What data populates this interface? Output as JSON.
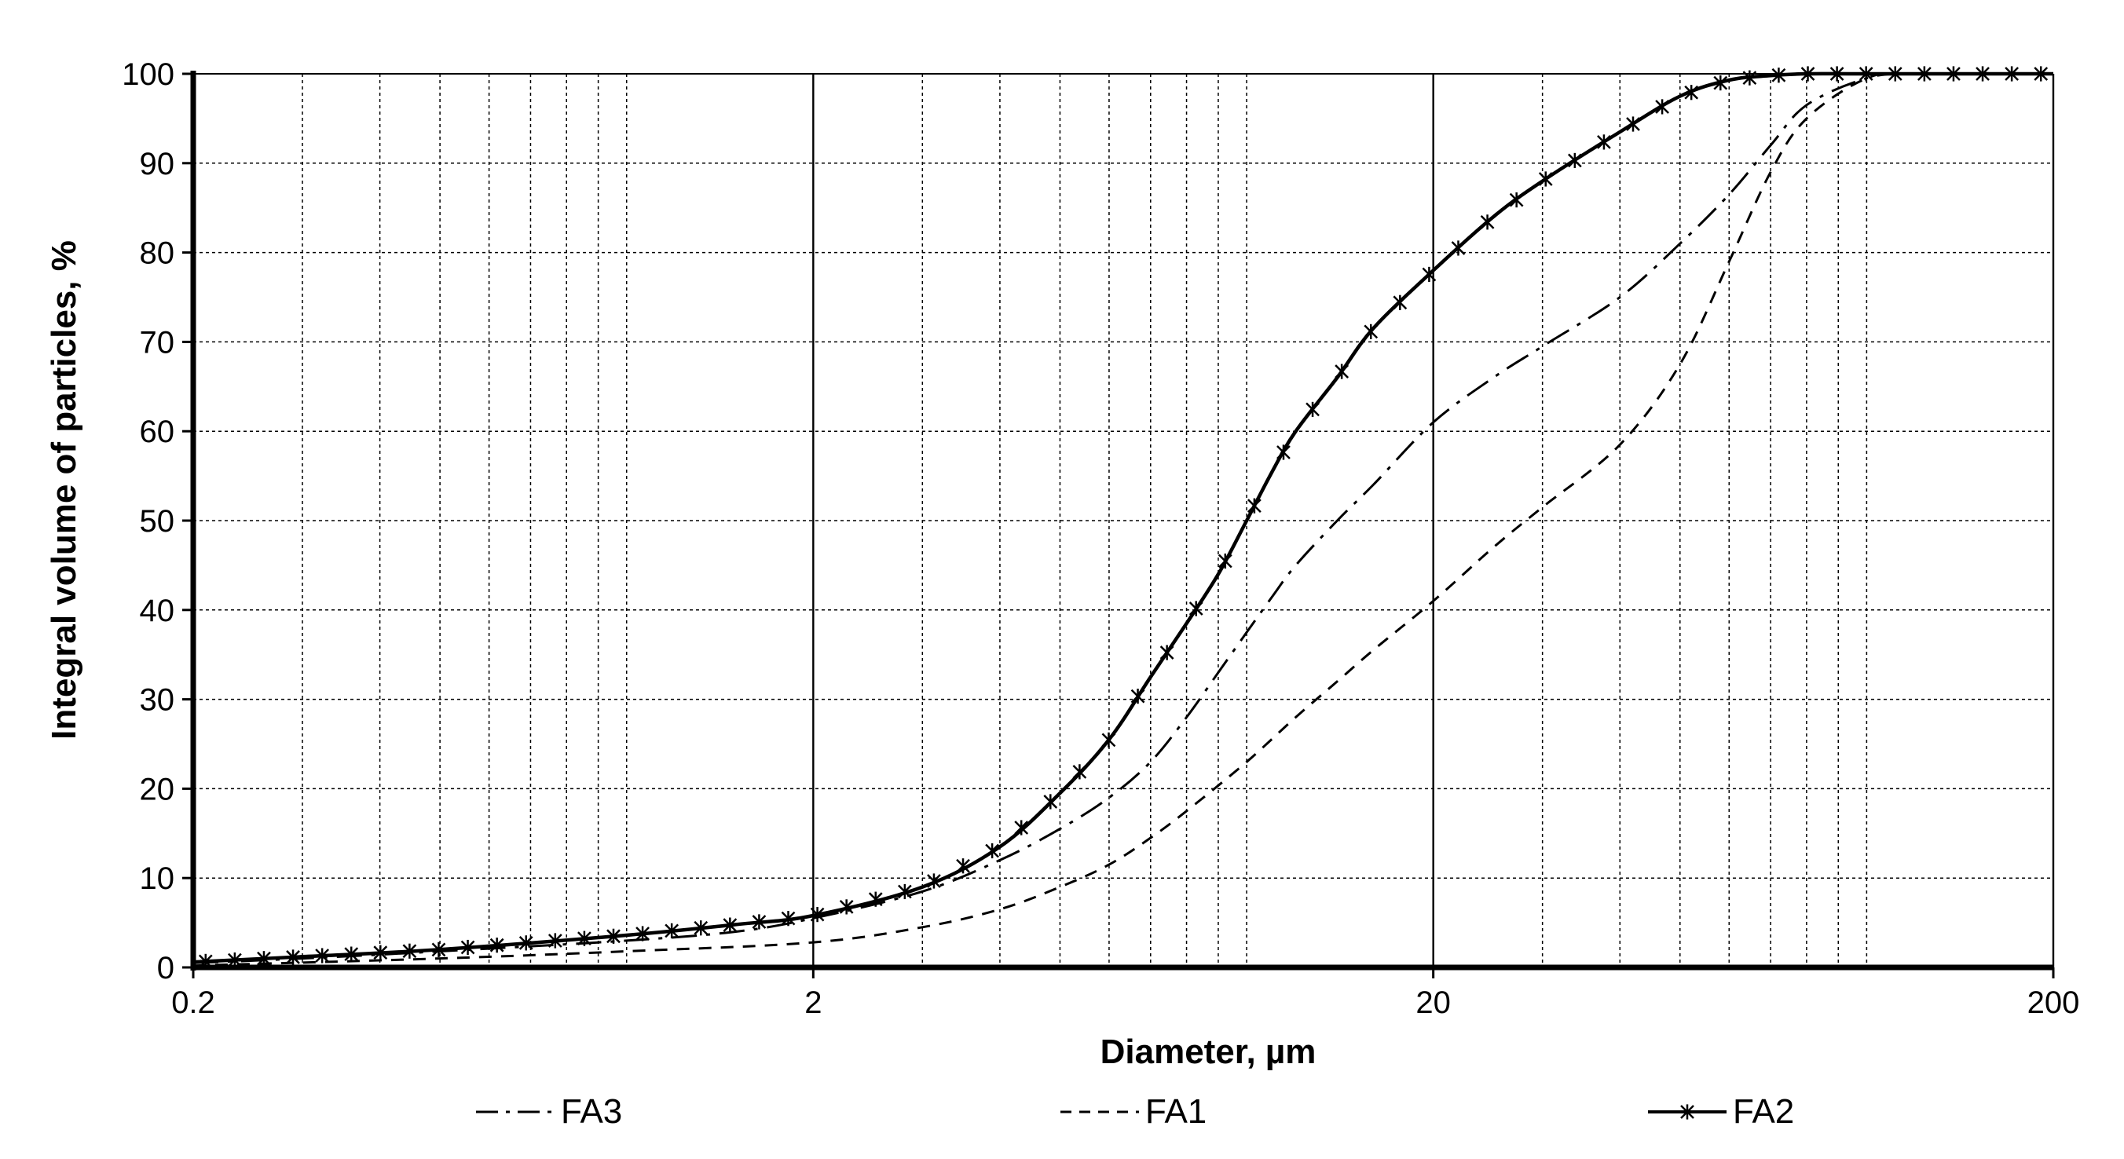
{
  "chart_data": {
    "type": "line",
    "title": "",
    "xlabel": "Diameter, µm",
    "ylabel": "Integral volume of particles, %",
    "x_scale": "log",
    "xlim": [
      0.2,
      200
    ],
    "ylim": [
      0,
      100
    ],
    "x_ticks": [
      "0.2",
      "2",
      "20",
      "200"
    ],
    "y_ticks": [
      "0",
      "10",
      "20",
      "30",
      "40",
      "50",
      "60",
      "70",
      "80",
      "90",
      "100"
    ],
    "grid": true,
    "legend_position": "bottom",
    "series": [
      {
        "name": "FA3",
        "line_style": "dash-dot",
        "marker": "none",
        "x": [
          0.2,
          0.3,
          0.5,
          1.0,
          1.5,
          2.0,
          3.0,
          4.0,
          5.0,
          6.0,
          7.0,
          8.0,
          9.0,
          10.0,
          11.0,
          12.0,
          14.0,
          16.0,
          20.0,
          25.0,
          30.0,
          40.0,
          50.0,
          60.0,
          70.0,
          80.0,
          100.0,
          120.0,
          200.0
        ],
        "y": [
          0.5,
          1.0,
          1.8,
          3.0,
          4.0,
          5.5,
          8.5,
          12.0,
          15.5,
          19.0,
          23.0,
          28.0,
          33.0,
          37.5,
          41.5,
          45.0,
          50.0,
          54.0,
          61.0,
          66.0,
          69.5,
          75.0,
          81.0,
          86.5,
          92.0,
          96.5,
          99.5,
          100.0,
          100.0
        ]
      },
      {
        "name": "FA1",
        "line_style": "dashed",
        "marker": "none",
        "x": [
          0.2,
          0.5,
          1.0,
          2.0,
          3.0,
          4.0,
          5.0,
          6.0,
          7.0,
          8.0,
          10.0,
          12.0,
          14.0,
          16.0,
          20.0,
          25.0,
          30.0,
          40.0,
          50.0,
          60.0,
          70.0,
          80.0,
          100.0,
          120.0,
          200.0
        ],
        "y": [
          0.2,
          1.0,
          1.8,
          2.8,
          4.5,
          6.5,
          9.0,
          11.5,
          14.5,
          17.5,
          23.0,
          28.0,
          32.0,
          35.5,
          41.0,
          47.0,
          51.5,
          58.5,
          67.5,
          79.0,
          89.0,
          95.0,
          99.5,
          100.0,
          100.0
        ]
      },
      {
        "name": "FA2",
        "line_style": "solid",
        "marker": "asterisk",
        "x": [
          0.2,
          0.3,
          0.5,
          1.0,
          1.5,
          2.0,
          3.0,
          4.0,
          5.0,
          6.0,
          7.0,
          8.0,
          9.0,
          10.0,
          11.0,
          12.0,
          14.0,
          16.0,
          20.0,
          25.0,
          30.0,
          40.0,
          50.0,
          60.0,
          70.0,
          80.0,
          100.0,
          200.0
        ],
        "y": [
          0.6,
          1.2,
          2.0,
          3.6,
          4.8,
          5.8,
          9.0,
          13.5,
          19.5,
          25.5,
          32.5,
          38.5,
          44.0,
          50.0,
          55.5,
          60.0,
          66.0,
          71.5,
          78.0,
          84.0,
          88.0,
          93.5,
          97.5,
          99.3,
          99.8,
          100.0,
          100.0,
          100.0
        ]
      }
    ]
  }
}
